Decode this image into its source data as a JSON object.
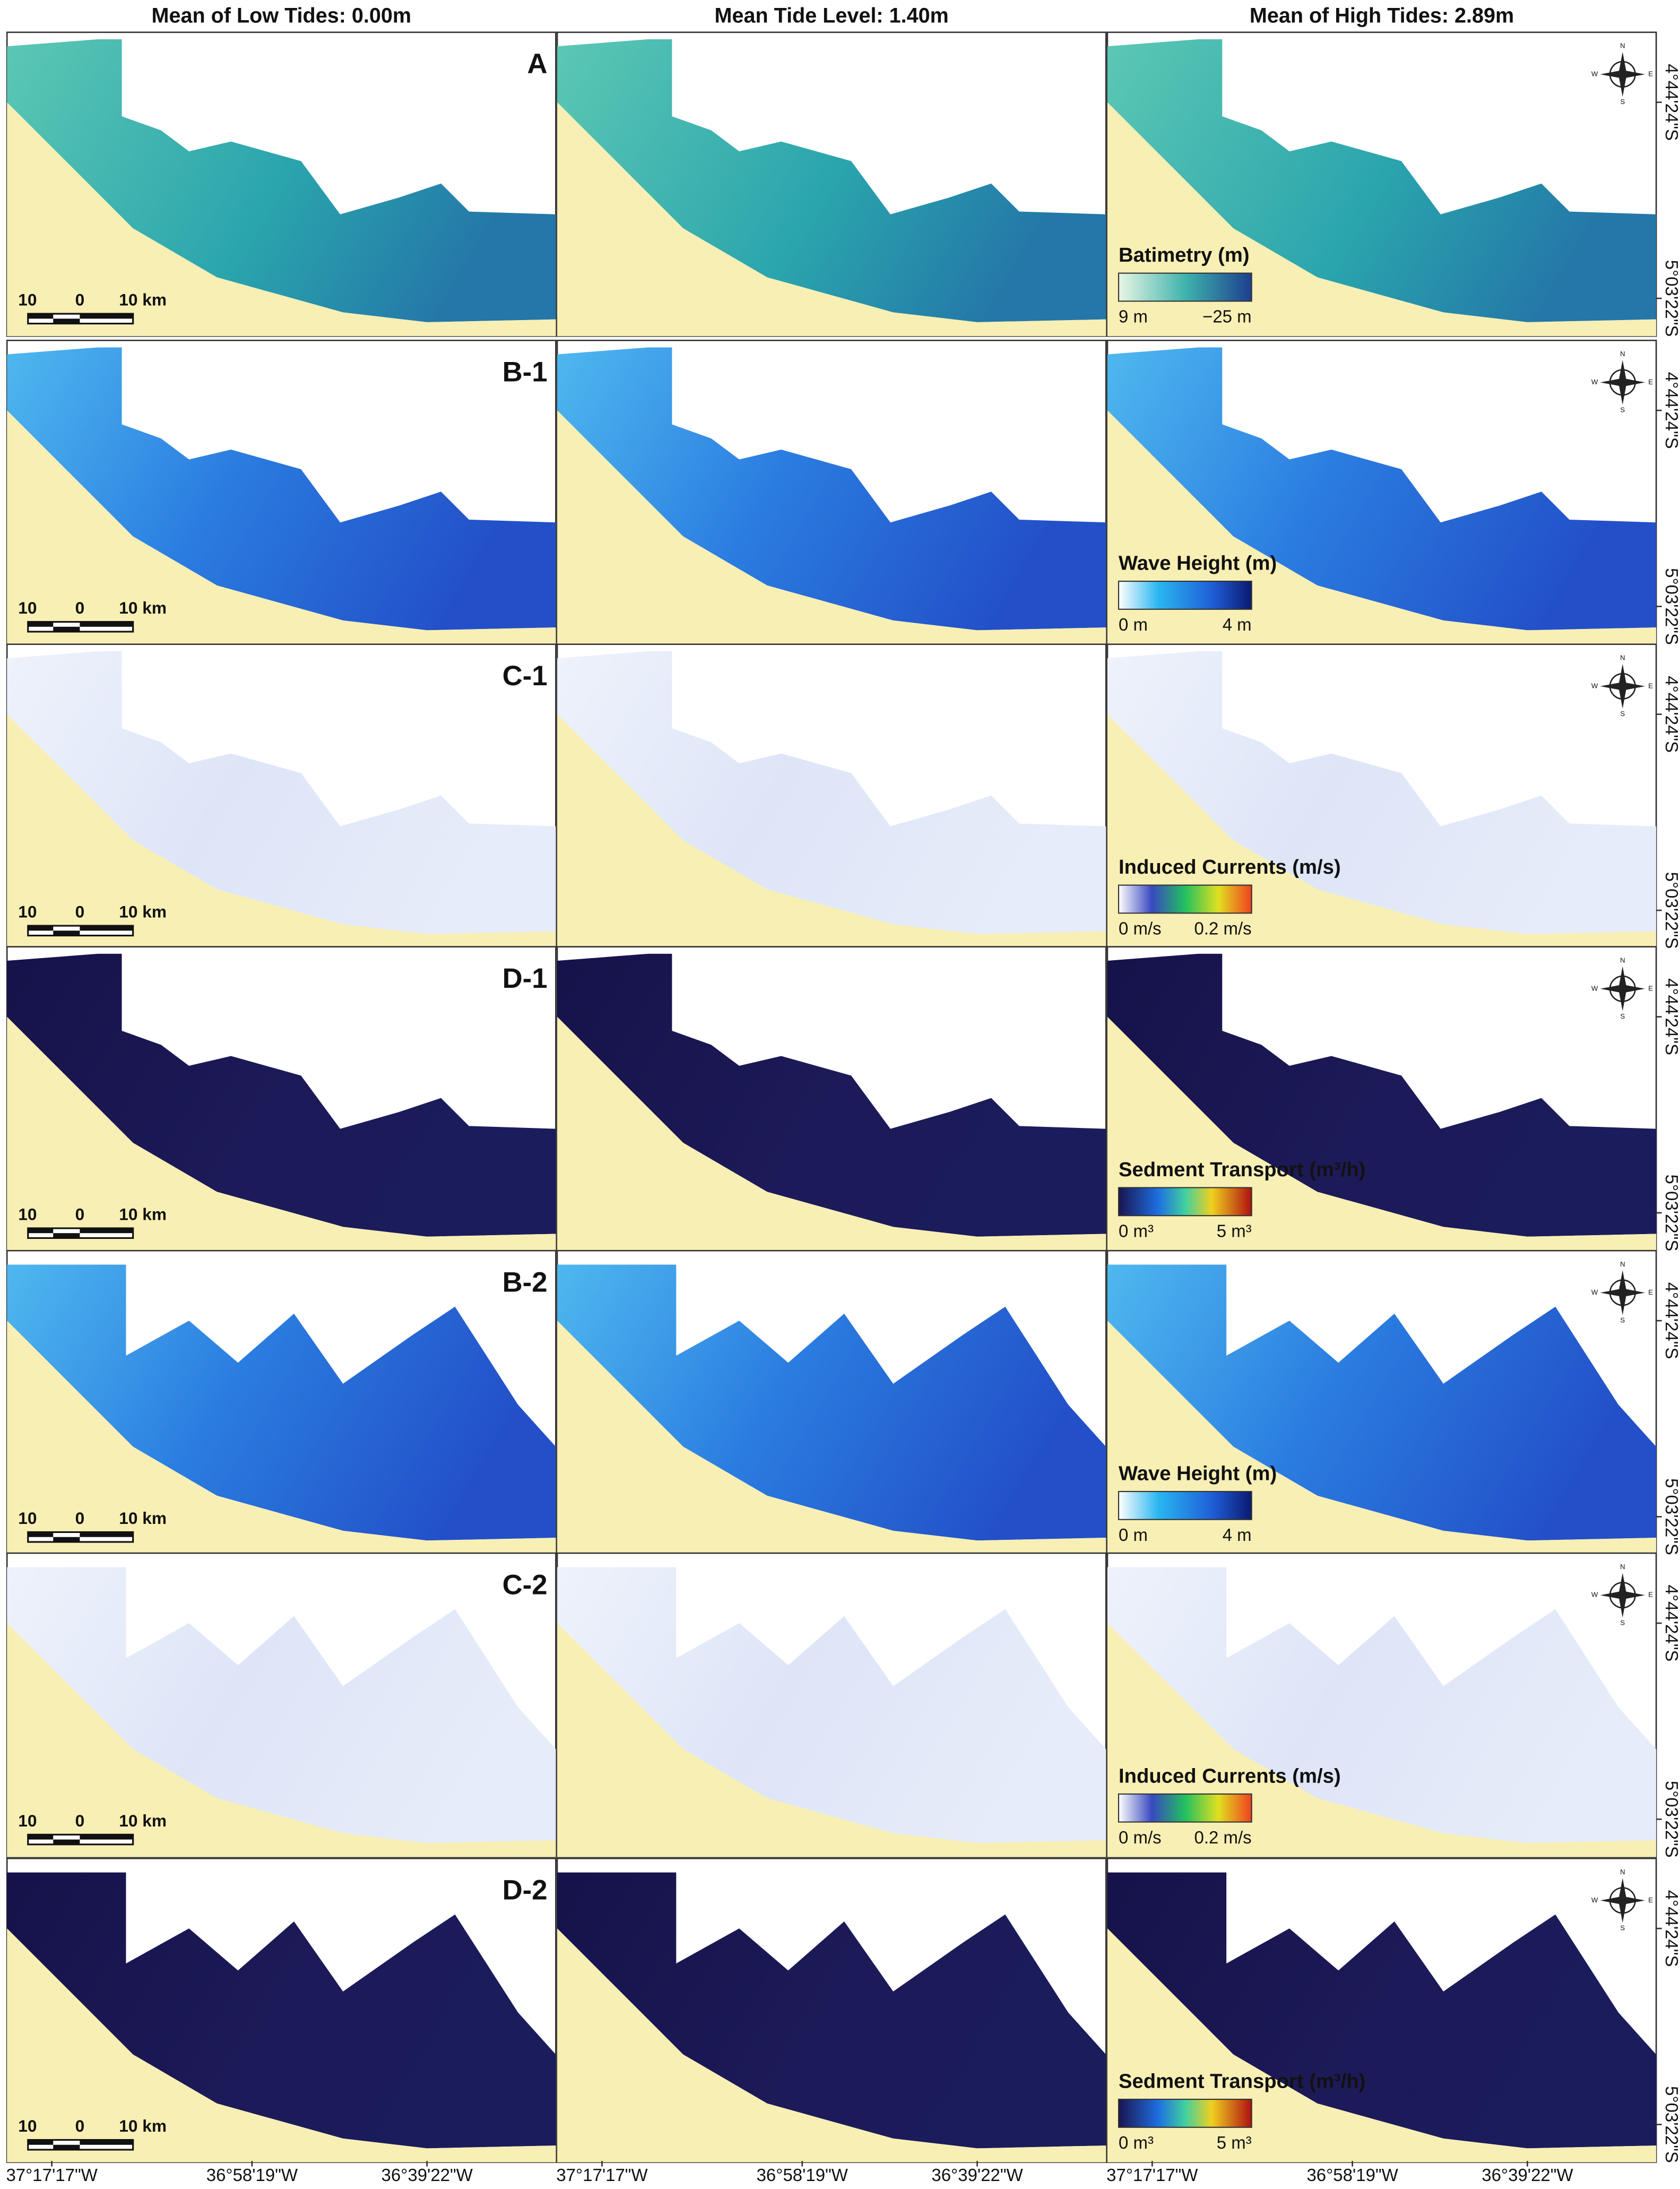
{
  "columns": [
    "Mean of Low Tides: 0.00m",
    "Mean Tide Level: 1.40m",
    "Mean of High Tides: 2.89m"
  ],
  "rows": [
    {
      "label": "A",
      "legend": {
        "title": "Batimetry (m)",
        "min": "9 m",
        "max": "−25 m"
      }
    },
    {
      "label": "B-1",
      "legend": {
        "title": "Wave Height (m)",
        "min": "0 m",
        "max": "4 m"
      }
    },
    {
      "label": "C-1",
      "legend": {
        "title": "Induced Currents (m/s)",
        "min": "0 m/s",
        "max": "0.2 m/s"
      }
    },
    {
      "label": "D-1",
      "legend": {
        "title": "Sedment Transport (m³/h)",
        "min": "0 m³",
        "max": "5 m³"
      }
    },
    {
      "label": "B-2",
      "legend": {
        "title": "Wave Height (m)",
        "min": "0 m",
        "max": "4 m"
      }
    },
    {
      "label": "C-2",
      "legend": {
        "title": "Induced Currents (m/s)",
        "min": "0 m/s",
        "max": "0.2 m/s"
      }
    },
    {
      "label": "D-2",
      "legend": {
        "title": "Sedment Transport (m³/h)",
        "min": "0 m³",
        "max": "5 m³"
      }
    }
  ],
  "scale_bar": {
    "left": "10",
    "middle": "0",
    "right": "10 km"
  },
  "compass": {
    "n": "N",
    "e": "E",
    "s": "S",
    "w": "W"
  },
  "latitude_labels": [
    "4°44'24\"S",
    "5°03'22\"S"
  ],
  "longitude_labels": [
    "37°17'17\"W",
    "36°58'19\"W",
    "36°39'22\"W"
  ]
}
